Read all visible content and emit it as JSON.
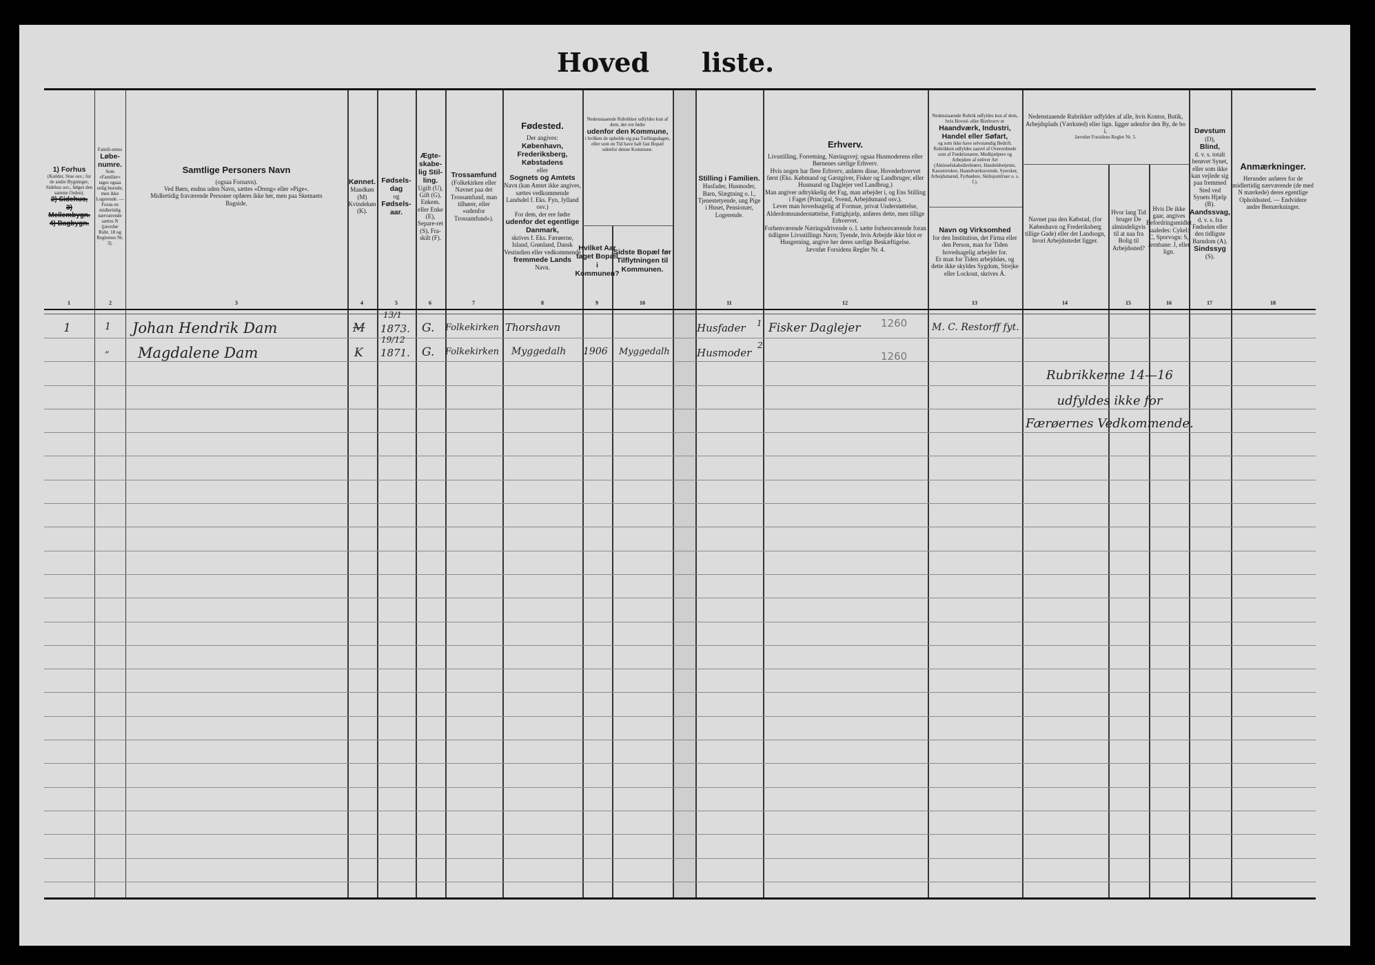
{
  "title": {
    "left": "Hoved",
    "right": "liste."
  },
  "header": {
    "c1": [
      {
        "t": "1) Forhus",
        "c": "b"
      },
      {
        "t": "(Kælder, Stue osv.; for de andre Bygninger, Sidehus osv., følges den samme Orden).",
        "c": "s"
      },
      {
        "t": "2) Sidehus,",
        "c": "x"
      },
      {
        "t": "3) Mellembygn.",
        "c": "x"
      },
      {
        "t": "4) Bagbygn.",
        "c": "x"
      }
    ],
    "c2": [
      {
        "t": "Famili-ernes",
        "c": "s"
      },
      {
        "t": "Løbe-numre.",
        "c": "b"
      },
      {
        "t": "Som »Familier« tages ogsaa enlig boende, men ikke Logerende. — Foran en midlertidig nærværende sættes N (jævnfør Rubr. 18 og Reglernes Nr. 3).",
        "c": "s"
      }
    ],
    "c3": [
      {
        "t": "Samtlige Personers Navn",
        "c": "h"
      },
      {
        "t": "(ogsaa Fornavn).",
        "c": ""
      },
      {
        "t": "Ved Børn, endnu uden Navn, sættes »Dreng« eller »Pige«.",
        "c": ""
      },
      {
        "t": "Midlertidig fraværende Personer opføres ikke her, men paa Skemaets Bagside.",
        "c": ""
      }
    ],
    "c4": [
      {
        "t": "Kønnet.",
        "c": "b"
      },
      {
        "t": "Mandkøn (M) Kvindekøn (K).",
        "c": ""
      }
    ],
    "c5": [
      {
        "t": "Fødsels-dag",
        "c": "b"
      },
      {
        "t": "og",
        "c": ""
      },
      {
        "t": "Fødsels-aar.",
        "c": "b"
      }
    ],
    "c6": [
      {
        "t": "Ægte-skabe-lig Stil-ling.",
        "c": "b"
      },
      {
        "t": "Ugift (U), Gift (G), Enkem. eller Enke (E), Separe-ret (S), Fra-skilt (F).",
        "c": ""
      }
    ],
    "c7": [
      {
        "t": "Trossamfund",
        "c": "b"
      },
      {
        "t": "(Folkekirken eller Navnet paa det Trossamfund, man tilhører, eller »udenfor Trossamfund«).",
        "c": ""
      }
    ],
    "c8": [
      {
        "t": "Fødested.",
        "c": "h"
      },
      {
        "t": "Der angives:",
        "c": ""
      },
      {
        "t": "København, Frederiksberg, Købstadens",
        "c": "b"
      },
      {
        "t": "eller",
        "c": ""
      },
      {
        "t": "Sognets og Amtets",
        "c": "b"
      },
      {
        "t": "Navn (kan Amtet ikke angives, sættes vedkommende Landsdel f. Eks. Fyn, Jylland osv.)",
        "c": ""
      },
      {
        "t": "For dem, der ere fødte",
        "c": ""
      },
      {
        "t": "udenfor det egentlige Danmark,",
        "c": "b"
      },
      {
        "t": "skrives f. Eks. Færøerne, Island, Grønland, Dansk Vestindien eller vedkommende",
        "c": ""
      },
      {
        "t": "fremmede Lands",
        "c": "b"
      },
      {
        "t": "Navn.",
        "c": ""
      }
    ],
    "c9_10": [
      {
        "t": "Nedenstaaende Rubrikker udfyldes kun af dem, der ere fødte",
        "c": "s"
      },
      {
        "t": "udenfor den Kommune,",
        "c": "b"
      },
      {
        "t": "i hvilken de opholde sig paa Tællingsdagen, eller som en Tid have haft fast Bopæl udenfor denne Kommune.",
        "c": "s"
      }
    ],
    "c9": [
      {
        "t": "Hvilket Aar taget Bopæl i Kommunen?",
        "c": "b"
      }
    ],
    "c10": [
      {
        "t": "Sidste Bopæl før Tilflytningen til Kommunen.",
        "c": "b"
      }
    ],
    "c11": [
      {
        "t": "Stilling i Familien.",
        "c": "b"
      },
      {
        "t": "Husfader, Husmoder, Barn, Slægtning o. l., Tjenestetyende, ung Pige i Huset, Pensionær, Logerende.",
        "c": ""
      }
    ],
    "c12": [
      {
        "t": "Erhverv.",
        "c": "h"
      },
      {
        "t": "Livsstilling, Forretning, Næringsvej; ogsaa Husmoderens eller Børnenes særlige Erhverv.",
        "c": ""
      },
      {
        "t": "Hvis nogen har flere Erhverv, anføres disse, Hovederhvervet først (Eks. Købmand og Gæstgiver, Fisker og Landbruger, eller Husmand og Daglejer ved Landbrug.)",
        "c": ""
      },
      {
        "t": "Man angiver udtrykkelig det Fag, man arbejder i, og Ens Stilling i Faget (Principal, Svend, Arbejdsmand osv.).",
        "c": ""
      },
      {
        "t": "Lever man hovedsagelig af Formue, privat Understøttelse, Alderdomsunderstøttelse, Fattighjælp, anføres dette, men tillige Erhvervet.",
        "c": ""
      },
      {
        "t": "Forhenværende Næringsdrivende o. l. sætte forhenværende foran tidligere Livsstillings Navn; Tyende, hvis Arbejde ikke blot er Husgerning, angive her deres særlige Beskæftigelse.",
        "c": ""
      },
      {
        "t": "Jævnfør Forsidens Regler Nr. 4.",
        "c": ""
      }
    ],
    "c13a": [
      {
        "t": "Nedenstaaende Rubrik udfyldes kun af dem, hvis Hoved- eller Bierhverv er",
        "c": "s"
      },
      {
        "t": "Haandværk, Industri, Handel eller Søfart,",
        "c": "b"
      },
      {
        "t": "og som ikke have selvstændig Bedrift.",
        "c": "s"
      },
      {
        "t": "Rubrikken udfyldes saavel af Overordnede som af Funktionærer, Medhjælpere og Arbejdere af enhver Art (Aktieselskabsdirektører, Handelsbetjente, Kassererskee, Haandværkssvende, Syersker, Arbejdsmænd, Fyrbødere, Skibsjomfruer o. s. f.).",
        "c": "s"
      }
    ],
    "c13b": [
      {
        "t": "Navn og Virksomhed",
        "c": "b"
      },
      {
        "t": "for den Institution, det Firma eller den Person, man for Tiden hovedsagelig arbejder for.",
        "c": ""
      },
      {
        "t": "Er man for Tiden arbejdsløs, og dette ikke skyldes Sygdom, Strejke eller Lockout, skrives Á.",
        "c": ""
      }
    ],
    "c14_16": [
      {
        "t": "Nedenstaaende Rubrikker udfyldes af alle, hvis Kontor, Butik, Arbejdsplads (Værksted) eller lign. ligger udenfor den By, de bo i.",
        "c": ""
      },
      {
        "t": "Jævnfør Forsidens Regler Nr. 5.",
        "c": "s"
      }
    ],
    "c14": [
      {
        "t": "Navnet paa den Købstad, (for København og Frederiksberg tillige Gade) eller det Landsogn, hvori Arbejdsstedet ligger.",
        "c": ""
      }
    ],
    "c15": [
      {
        "t": "Hvor lang Tid bruger De almindeligvis til at naa fra Bolig til Arbejdssted?",
        "c": ""
      }
    ],
    "c16": [
      {
        "t": "Hvis De ikke gaar, angives Befordringsmidlet saaledes: Cykel: C, Sporvogn: S, Jernbane: J, eller lign.",
        "c": ""
      }
    ],
    "c17": [
      {
        "t": "Døvstum",
        "c": "b"
      },
      {
        "t": "(D),",
        "c": ""
      },
      {
        "t": "Blind,",
        "c": "b"
      },
      {
        "t": "d. v. s. totalt berøvet Synet, eller som ikke kan vejlede sig paa fremmed Sted ved Synets Hjælp (B).",
        "c": ""
      },
      {
        "t": "Aandssvag,",
        "c": "b"
      },
      {
        "t": "d. v. s. fra Fødselen eller den tidligste Barndom (A).",
        "c": ""
      },
      {
        "t": "Sindssyg",
        "c": "b"
      },
      {
        "t": "(S).",
        "c": ""
      }
    ],
    "c18": [
      {
        "t": "Anmærkninger.",
        "c": "h"
      },
      {
        "t": "Herunder anføres for de midlertidig nærværende (de med N mærkede) deres egentlige Opholdssted. — Endvidere andre Bemærkninger.",
        "c": ""
      }
    ]
  },
  "column_numbers": [
    "1",
    "2",
    "3",
    "4",
    "5",
    "6",
    "7",
    "8",
    "9",
    "10",
    "11",
    "12",
    "13",
    "14",
    "15",
    "16",
    "17",
    "18"
  ],
  "entries": [
    {
      "col1": "1",
      "col2": "1",
      "name": "Johan Hendrik Dam",
      "sex": "M",
      "birth_day": "13/1",
      "birth_year": "1873.",
      "marital": "G.",
      "religion": "Folkekirken",
      "birthplace": "Thorshavn",
      "year_moved": "",
      "last_residence": "",
      "family_position": "Husfader",
      "family_mark": "1",
      "occupation": "Fisker Daglejer",
      "occupation_code": "1260",
      "employer": "M. C. Restorff fyt."
    },
    {
      "col1": "",
      "col2": "„",
      "name": "Magdalene Dam",
      "sex": "K",
      "birth_day": "19/12",
      "birth_year": "1871.",
      "marital": "G.",
      "religion": "Folkekirken",
      "birthplace": "Myggedalh",
      "year_moved": "1906",
      "last_residence": "Myggedalh",
      "family_position": "Husmoder",
      "family_mark": "2",
      "occupation": "",
      "occupation_code": "1260",
      "employer": ""
    }
  ],
  "note": {
    "line1": "Rubrikkerne 14—16",
    "line2": "udfyldes ikke for",
    "line3": "Færøernes Vedkommende."
  }
}
